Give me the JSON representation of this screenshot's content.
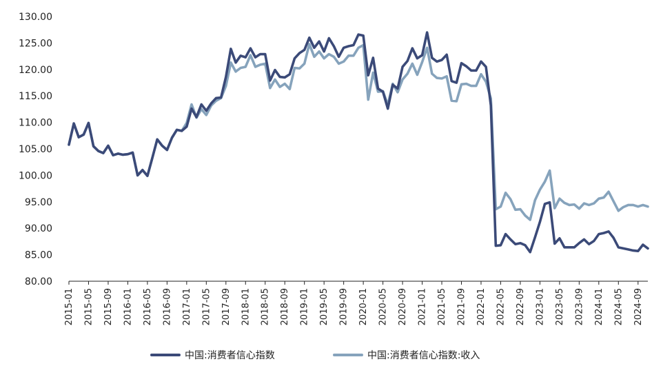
{
  "chart_data": {
    "type": "line",
    "ylim": [
      80,
      130
    ],
    "yticks": [
      "80.00",
      "85.00",
      "90.00",
      "95.00",
      "100.00",
      "105.00",
      "110.00",
      "115.00",
      "120.00",
      "125.00",
      "130.00"
    ],
    "x": [
      "2015-01",
      "2015-02",
      "2015-03",
      "2015-04",
      "2015-05",
      "2015-06",
      "2015-07",
      "2015-08",
      "2015-09",
      "2015-10",
      "2015-11",
      "2015-12",
      "2016-01",
      "2016-02",
      "2016-03",
      "2016-04",
      "2016-05",
      "2016-06",
      "2016-07",
      "2016-08",
      "2016-09",
      "2016-10",
      "2016-11",
      "2016-12",
      "2017-01",
      "2017-02",
      "2017-03",
      "2017-04",
      "2017-05",
      "2017-06",
      "2017-07",
      "2017-08",
      "2017-09",
      "2017-10",
      "2017-11",
      "2017-12",
      "2018-01",
      "2018-02",
      "2018-03",
      "2018-04",
      "2018-05",
      "2018-06",
      "2018-07",
      "2018-08",
      "2018-09",
      "2018-10",
      "2018-11",
      "2018-12",
      "2019-01",
      "2019-02",
      "2019-03",
      "2019-04",
      "2019-05",
      "2019-06",
      "2019-07",
      "2019-08",
      "2019-09",
      "2019-10",
      "2019-11",
      "2019-12",
      "2020-01",
      "2020-02",
      "2020-03",
      "2020-04",
      "2020-05",
      "2020-06",
      "2020-07",
      "2020-08",
      "2020-09",
      "2020-10",
      "2020-11",
      "2020-12",
      "2021-01",
      "2021-02",
      "2021-03",
      "2021-04",
      "2021-05",
      "2021-06",
      "2021-07",
      "2021-08",
      "2021-09",
      "2021-10",
      "2021-11",
      "2021-12",
      "2022-01",
      "2022-02",
      "2022-03",
      "2022-04",
      "2022-05",
      "2022-06",
      "2022-07",
      "2022-08",
      "2022-09",
      "2022-10",
      "2022-11",
      "2022-12",
      "2023-01",
      "2023-02",
      "2023-03",
      "2023-04",
      "2023-05",
      "2023-06",
      "2023-07",
      "2023-08",
      "2023-09",
      "2023-10",
      "2023-11",
      "2023-12",
      "2024-01",
      "2024-02",
      "2024-03",
      "2024-04",
      "2024-05",
      "2024-06",
      "2024-07",
      "2024-08",
      "2024-09",
      "2024-10",
      "2024-11"
    ],
    "xtick_labels": [
      "2015-01",
      "2015-05",
      "2015-09",
      "2016-01",
      "2016-05",
      "2016-09",
      "2017-01",
      "2017-05",
      "2017-09",
      "2018-01",
      "2018-05",
      "2018-09",
      "2019-01",
      "2019-05",
      "2019-09",
      "2020-01",
      "2020-05",
      "2020-09",
      "2021-01",
      "2021-05",
      "2021-09",
      "2022-01",
      "2022-05",
      "2022-09",
      "2023-01",
      "2023-05",
      "2023-09",
      "2024-01",
      "2024-05",
      "2024-09"
    ],
    "grid": false,
    "legend_position": "bottom",
    "series": [
      {
        "name": "中国:消费者信心指数",
        "color": "#3b4a78",
        "values": [
          105.8,
          109.8,
          107.2,
          107.7,
          109.9,
          105.5,
          104.6,
          104.2,
          105.6,
          103.8,
          104.1,
          103.9,
          104.0,
          104.3,
          100.0,
          101.0,
          99.9,
          103.3,
          106.8,
          105.6,
          104.8,
          107.1,
          108.6,
          108.4,
          109.2,
          112.6,
          111.0,
          113.4,
          112.2,
          113.6,
          114.6,
          114.7,
          118.6,
          123.9,
          121.3,
          122.6,
          122.3,
          124.0,
          122.3,
          122.9,
          122.9,
          117.9,
          119.9,
          118.6,
          118.5,
          119.1,
          122.1,
          123.1,
          123.7,
          126.0,
          124.1,
          125.3,
          123.4,
          125.9,
          124.4,
          122.4,
          124.1,
          124.4,
          124.6,
          126.6,
          126.4,
          118.9,
          122.2,
          116.4,
          115.8,
          112.6,
          117.1,
          116.4,
          120.5,
          121.6,
          124.0,
          122.1,
          122.7,
          127.0,
          122.2,
          121.5,
          121.8,
          122.8,
          117.8,
          117.5,
          121.2,
          120.6,
          119.8,
          119.8,
          121.5,
          120.5,
          113.2,
          86.7,
          86.8,
          88.9,
          87.9,
          87.0,
          87.2,
          86.8,
          85.5,
          88.3,
          91.2,
          94.6,
          94.9,
          87.1,
          88.1,
          86.4,
          86.4,
          86.4,
          87.2,
          87.9,
          87.0,
          87.6,
          88.9,
          89.1,
          89.4,
          88.2,
          86.4,
          86.2,
          86.0,
          85.8,
          85.7,
          86.9,
          86.2
        ]
      },
      {
        "name": "中国:消费者信心指数:收入",
        "color": "#86a3bc",
        "values": [
          105.8,
          109.8,
          107.2,
          107.7,
          109.9,
          105.5,
          104.6,
          104.2,
          105.6,
          103.8,
          104.1,
          103.9,
          104.0,
          104.3,
          100.0,
          101.0,
          99.9,
          103.3,
          106.8,
          105.6,
          104.8,
          107.1,
          108.6,
          108.4,
          109.9,
          113.4,
          110.9,
          112.5,
          111.4,
          113.2,
          114.1,
          114.6,
          116.9,
          121.3,
          119.6,
          120.3,
          120.5,
          122.7,
          120.5,
          120.9,
          121.1,
          116.5,
          118.1,
          116.7,
          117.3,
          116.3,
          120.3,
          120.2,
          121.1,
          124.8,
          122.4,
          123.4,
          122.1,
          122.9,
          122.4,
          121.1,
          121.5,
          122.6,
          122.6,
          124.1,
          124.6,
          114.3,
          119.4,
          115.8,
          115.9,
          113.3,
          117.3,
          115.7,
          118.1,
          119.2,
          121.1,
          119.0,
          121.4,
          124.1,
          119.2,
          118.4,
          118.3,
          118.7,
          114.1,
          114.0,
          117.2,
          117.3,
          116.9,
          116.9,
          119.1,
          117.7,
          114.5,
          93.6,
          94.1,
          96.7,
          95.5,
          93.5,
          93.6,
          92.4,
          91.6,
          95.3,
          97.3,
          98.8,
          100.9,
          93.8,
          95.6,
          94.8,
          94.4,
          94.5,
          93.7,
          94.7,
          94.4,
          94.7,
          95.6,
          95.8,
          96.9,
          95.1,
          93.3,
          94.0,
          94.4,
          94.4,
          94.1,
          94.4,
          94.1
        ]
      }
    ]
  }
}
